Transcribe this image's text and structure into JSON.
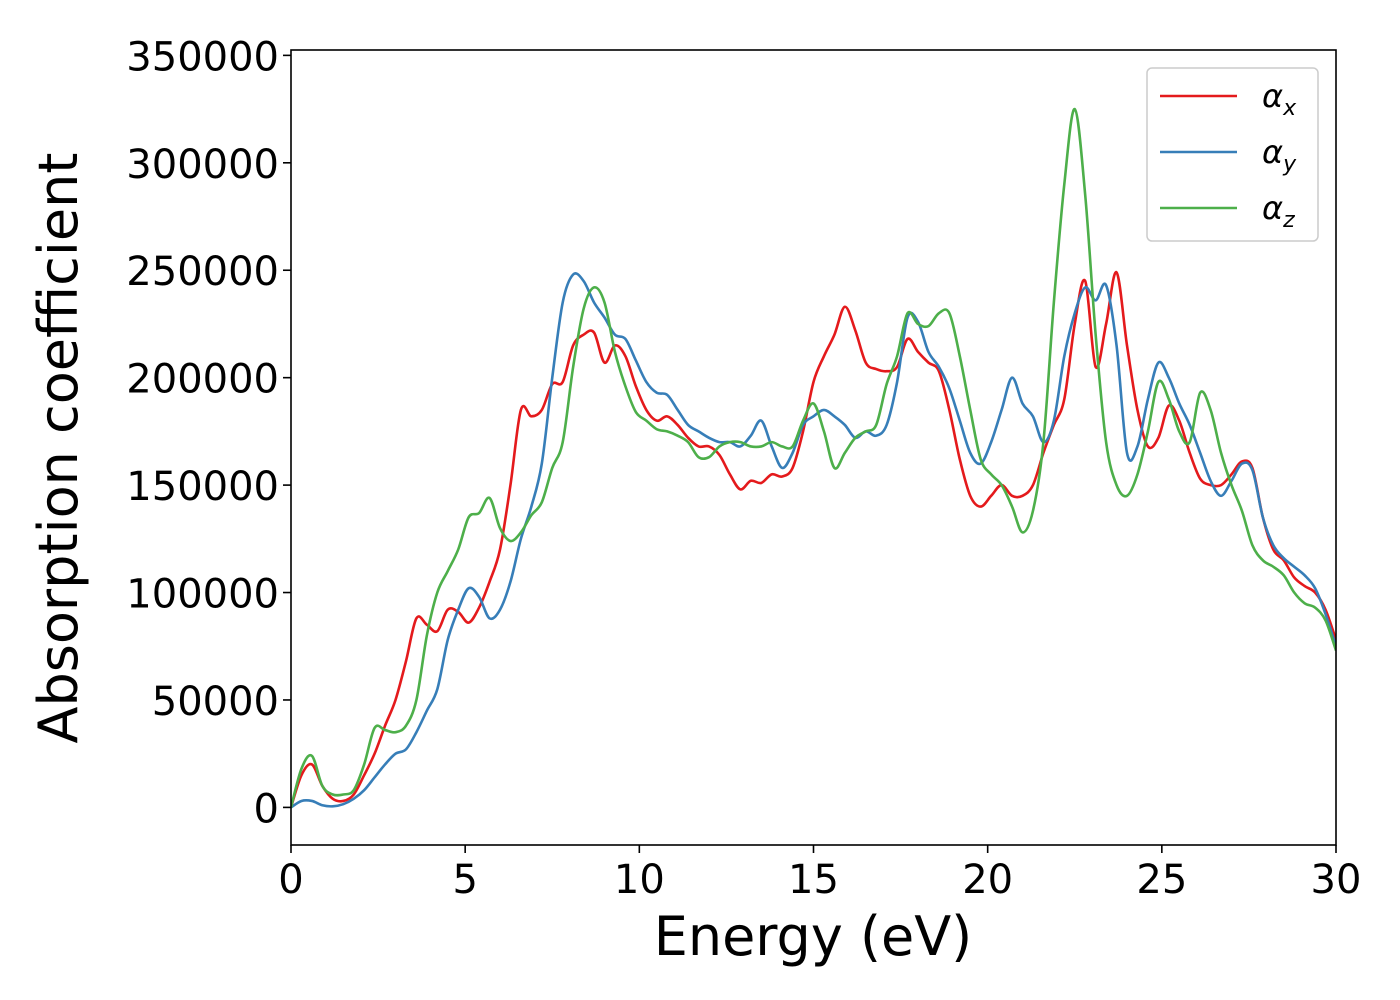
{
  "chart_data": {
    "type": "line",
    "xlabel": "Energy (eV)",
    "ylabel": "Absorption coefficient",
    "xlim": [
      0,
      30
    ],
    "ylim": [
      -17500,
      352500
    ],
    "xticks": [
      0,
      5,
      10,
      15,
      20,
      25,
      30
    ],
    "yticks": [
      0,
      50000,
      100000,
      150000,
      200000,
      250000,
      300000,
      350000
    ],
    "grid": false,
    "legend_position": "top-right",
    "series": [
      {
        "name": "α_x",
        "symbol": "α",
        "subscript": "x",
        "color": "#e41a1c",
        "x": [
          0,
          0.3,
          0.6,
          0.9,
          1.2,
          1.5,
          1.8,
          2.1,
          2.4,
          2.7,
          3,
          3.3,
          3.6,
          3.9,
          4.2,
          4.5,
          4.8,
          5.1,
          5.4,
          5.7,
          6,
          6.3,
          6.6,
          6.9,
          7.2,
          7.5,
          7.8,
          8.1,
          8.4,
          8.7,
          9,
          9.3,
          9.6,
          9.9,
          10.2,
          10.5,
          10.8,
          11.1,
          11.4,
          11.7,
          12,
          12.3,
          12.6,
          12.9,
          13.2,
          13.5,
          13.8,
          14.1,
          14.4,
          14.7,
          15,
          15.3,
          15.6,
          15.9,
          16.2,
          16.5,
          16.8,
          17.1,
          17.4,
          17.7,
          18,
          18.3,
          18.6,
          18.9,
          19.2,
          19.5,
          19.8,
          20.1,
          20.4,
          20.7,
          21,
          21.3,
          21.6,
          21.9,
          22.2,
          22.5,
          22.8,
          23.1,
          23.4,
          23.7,
          24,
          24.3,
          24.6,
          24.9,
          25.2,
          25.5,
          25.8,
          26.1,
          26.4,
          26.7,
          27,
          27.3,
          27.6,
          27.9,
          28.2,
          28.5,
          28.8,
          29.1,
          29.4,
          29.7,
          30
        ],
        "y": [
          0,
          15000,
          20000,
          10000,
          4000,
          3000,
          6000,
          15000,
          25000,
          38000,
          50000,
          68000,
          88000,
          85000,
          82000,
          92000,
          91000,
          86000,
          93000,
          105000,
          120000,
          150000,
          185000,
          182000,
          185000,
          197000,
          198000,
          215000,
          220000,
          221000,
          207000,
          215000,
          210000,
          196000,
          185000,
          180000,
          182000,
          178000,
          172000,
          168000,
          168000,
          164000,
          155000,
          148000,
          152000,
          151000,
          155000,
          154000,
          158000,
          175000,
          198000,
          210000,
          220000,
          233000,
          222000,
          207000,
          204000,
          203000,
          205000,
          218000,
          212000,
          207000,
          203000,
          185000,
          162000,
          145000,
          140000,
          145000,
          150000,
          145000,
          145000,
          150000,
          165000,
          178000,
          190000,
          225000,
          245000,
          205000,
          225000,
          249000,
          215000,
          185000,
          168000,
          172000,
          187000,
          180000,
          165000,
          153000,
          150000,
          150000,
          155000,
          161000,
          158000,
          135000,
          120000,
          115000,
          107000,
          103000,
          100000,
          92000,
          78000
        ]
      },
      {
        "name": "α_y",
        "symbol": "α",
        "subscript": "y",
        "color": "#377eb8",
        "x": [
          0,
          0.3,
          0.6,
          0.9,
          1.2,
          1.5,
          1.8,
          2.1,
          2.4,
          2.7,
          3,
          3.3,
          3.6,
          3.9,
          4.2,
          4.5,
          4.8,
          5.1,
          5.4,
          5.7,
          6,
          6.3,
          6.6,
          6.9,
          7.2,
          7.5,
          7.8,
          8.1,
          8.4,
          8.7,
          9,
          9.3,
          9.6,
          9.9,
          10.2,
          10.5,
          10.8,
          11.1,
          11.4,
          11.7,
          12,
          12.3,
          12.6,
          12.9,
          13.2,
          13.5,
          13.8,
          14.1,
          14.4,
          14.7,
          15,
          15.3,
          15.6,
          15.9,
          16.2,
          16.5,
          16.8,
          17.1,
          17.4,
          17.7,
          18,
          18.3,
          18.6,
          18.9,
          19.2,
          19.5,
          19.8,
          20.1,
          20.4,
          20.7,
          21,
          21.3,
          21.6,
          21.9,
          22.2,
          22.5,
          22.8,
          23.1,
          23.4,
          23.7,
          24,
          24.3,
          24.6,
          24.9,
          25.2,
          25.5,
          25.8,
          26.1,
          26.4,
          26.7,
          27,
          27.3,
          27.6,
          27.9,
          28.2,
          28.5,
          28.8,
          29.1,
          29.4,
          29.7,
          30
        ],
        "y": [
          0,
          3000,
          3000,
          1000,
          500,
          1500,
          4000,
          8000,
          14000,
          20000,
          25000,
          27000,
          35000,
          45000,
          55000,
          78000,
          92000,
          102000,
          98000,
          88000,
          92000,
          105000,
          125000,
          140000,
          160000,
          200000,
          235000,
          248000,
          245000,
          235000,
          228000,
          220000,
          218000,
          208000,
          198000,
          193000,
          192000,
          185000,
          178000,
          175000,
          172000,
          170000,
          170000,
          168000,
          173000,
          180000,
          168000,
          158000,
          165000,
          178000,
          182000,
          185000,
          182000,
          178000,
          172000,
          175000,
          173000,
          178000,
          198000,
          228000,
          226000,
          212000,
          205000,
          195000,
          180000,
          165000,
          160000,
          170000,
          185000,
          200000,
          188000,
          182000,
          170000,
          180000,
          210000,
          230000,
          242000,
          236000,
          243000,
          215000,
          165000,
          168000,
          190000,
          207000,
          200000,
          188000,
          178000,
          165000,
          152000,
          145000,
          152000,
          160000,
          157000,
          135000,
          122000,
          116000,
          112000,
          108000,
          102000,
          90000,
          75000
        ]
      },
      {
        "name": "α_z",
        "symbol": "α",
        "subscript": "z",
        "color": "#4daf4a",
        "x": [
          0,
          0.3,
          0.6,
          0.9,
          1.2,
          1.5,
          1.8,
          2.1,
          2.4,
          2.7,
          3,
          3.3,
          3.6,
          3.9,
          4.2,
          4.5,
          4.8,
          5.1,
          5.4,
          5.7,
          6,
          6.3,
          6.6,
          6.9,
          7.2,
          7.5,
          7.8,
          8.1,
          8.4,
          8.7,
          9,
          9.3,
          9.6,
          9.9,
          10.2,
          10.5,
          10.8,
          11.1,
          11.4,
          11.7,
          12,
          12.3,
          12.6,
          12.9,
          13.2,
          13.5,
          13.8,
          14.1,
          14.4,
          14.7,
          15,
          15.3,
          15.6,
          15.9,
          16.2,
          16.5,
          16.8,
          17.1,
          17.4,
          17.7,
          18,
          18.3,
          18.6,
          18.9,
          19.2,
          19.5,
          19.8,
          20.1,
          20.4,
          20.7,
          21,
          21.3,
          21.6,
          21.9,
          22.2,
          22.5,
          22.8,
          23.1,
          23.4,
          23.7,
          24,
          24.3,
          24.6,
          24.9,
          25.2,
          25.5,
          25.8,
          26.1,
          26.4,
          26.7,
          27,
          27.3,
          27.6,
          27.9,
          28.2,
          28.5,
          28.8,
          29.1,
          29.4,
          29.7,
          30
        ],
        "y": [
          0,
          18000,
          24000,
          10000,
          6000,
          6000,
          8000,
          20000,
          37000,
          36000,
          35000,
          38000,
          50000,
          80000,
          100000,
          110000,
          120000,
          135000,
          137000,
          144000,
          130000,
          124000,
          128000,
          136000,
          142000,
          158000,
          170000,
          205000,
          232000,
          242000,
          235000,
          212000,
          196000,
          184000,
          180000,
          176000,
          175000,
          173000,
          170000,
          163000,
          163000,
          168000,
          170000,
          170000,
          168000,
          168000,
          170000,
          168000,
          168000,
          180000,
          188000,
          175000,
          158000,
          165000,
          172000,
          175000,
          178000,
          197000,
          210000,
          230000,
          225000,
          224000,
          230000,
          230000,
          210000,
          185000,
          162000,
          155000,
          150000,
          140000,
          128000,
          138000,
          170000,
          235000,
          290000,
          325000,
          285000,
          220000,
          170000,
          150000,
          145000,
          155000,
          175000,
          198000,
          190000,
          175000,
          170000,
          193000,
          185000,
          165000,
          150000,
          138000,
          122000,
          115000,
          112000,
          108000,
          100000,
          95000,
          93000,
          87000,
          73000
        ]
      }
    ]
  }
}
